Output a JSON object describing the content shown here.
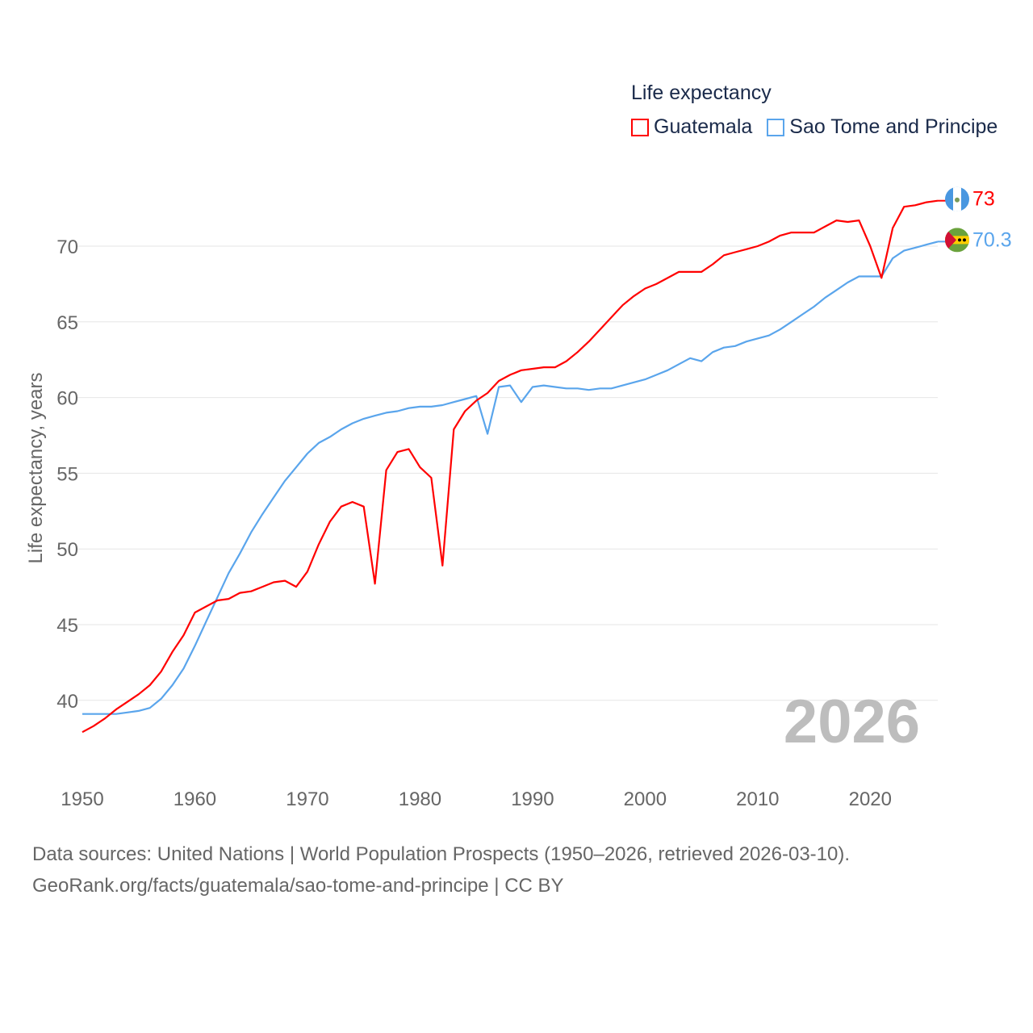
{
  "chart_data": {
    "type": "line",
    "title": "Life expectancy",
    "ylabel": "Life expectancy, years",
    "xlabel": "",
    "xlim": [
      1950,
      2026
    ],
    "ylim": [
      35.8,
      74
    ],
    "yticks": [
      40,
      45,
      50,
      55,
      60,
      65,
      70
    ],
    "xticks": [
      1950,
      1960,
      1970,
      1980,
      1990,
      2000,
      2010,
      2020
    ],
    "grid": true,
    "legend_position": "top-right",
    "watermark_year": "2026",
    "x": [
      1950,
      1951,
      1952,
      1953,
      1954,
      1955,
      1956,
      1957,
      1958,
      1959,
      1960,
      1961,
      1962,
      1963,
      1964,
      1965,
      1966,
      1967,
      1968,
      1969,
      1970,
      1971,
      1972,
      1973,
      1974,
      1975,
      1976,
      1977,
      1978,
      1979,
      1980,
      1981,
      1982,
      1983,
      1984,
      1985,
      1986,
      1987,
      1988,
      1989,
      1990,
      1991,
      1992,
      1993,
      1994,
      1995,
      1996,
      1997,
      1998,
      1999,
      2000,
      2001,
      2002,
      2003,
      2004,
      2005,
      2006,
      2007,
      2008,
      2009,
      2010,
      2011,
      2012,
      2013,
      2014,
      2015,
      2016,
      2017,
      2018,
      2019,
      2020,
      2021,
      2022,
      2023,
      2024,
      2025,
      2026
    ],
    "series": [
      {
        "name": "Guatemala",
        "color": "#ff0000",
        "end_label": "73",
        "flag": "guatemala",
        "values": [
          37.9,
          38.3,
          38.8,
          39.4,
          39.9,
          40.4,
          41.0,
          41.9,
          43.2,
          44.3,
          45.8,
          46.2,
          46.6,
          46.7,
          47.1,
          47.2,
          47.5,
          47.8,
          47.9,
          47.5,
          48.5,
          50.3,
          51.8,
          52.8,
          53.1,
          52.8,
          47.7,
          55.2,
          56.4,
          56.6,
          55.4,
          54.7,
          48.9,
          57.9,
          59.1,
          59.8,
          60.3,
          61.1,
          61.5,
          61.8,
          61.9,
          62.0,
          62.0,
          62.4,
          63.0,
          63.7,
          64.5,
          65.3,
          66.1,
          66.7,
          67.2,
          67.5,
          67.9,
          68.3,
          68.3,
          68.3,
          68.8,
          69.4,
          69.6,
          69.8,
          70.0,
          70.3,
          70.7,
          70.9,
          70.9,
          70.9,
          71.3,
          71.7,
          71.6,
          71.7,
          70.0,
          67.9,
          71.2,
          72.6,
          72.7,
          72.9,
          73.0
        ]
      },
      {
        "name": "Sao Tome and Principe",
        "color": "#5aa5ec",
        "end_label": "70.3",
        "flag": "sao-tome",
        "values": [
          39.1,
          39.1,
          39.1,
          39.1,
          39.2,
          39.3,
          39.5,
          40.1,
          41.0,
          42.1,
          43.6,
          45.2,
          46.8,
          48.4,
          49.7,
          51.1,
          52.3,
          53.4,
          54.5,
          55.4,
          56.3,
          57.0,
          57.4,
          57.9,
          58.3,
          58.6,
          58.8,
          59.0,
          59.1,
          59.3,
          59.4,
          59.4,
          59.5,
          59.7,
          59.9,
          60.1,
          57.6,
          60.7,
          60.8,
          59.7,
          60.7,
          60.8,
          60.7,
          60.6,
          60.6,
          60.5,
          60.6,
          60.6,
          60.8,
          61.0,
          61.2,
          61.5,
          61.8,
          62.2,
          62.6,
          62.4,
          63.0,
          63.3,
          63.4,
          63.7,
          63.9,
          64.1,
          64.5,
          65.0,
          65.5,
          66.0,
          66.6,
          67.1,
          67.6,
          68.0,
          68.0,
          68.0,
          69.2,
          69.7,
          69.9,
          70.1,
          70.3
        ]
      }
    ]
  },
  "footer": {
    "line1": "Data sources: United Nations | World Population Prospects (1950–2026, retrieved 2026-03-10).",
    "line2": "GeoRank.org/facts/guatemala/sao-tome-and-principe | CC BY"
  }
}
